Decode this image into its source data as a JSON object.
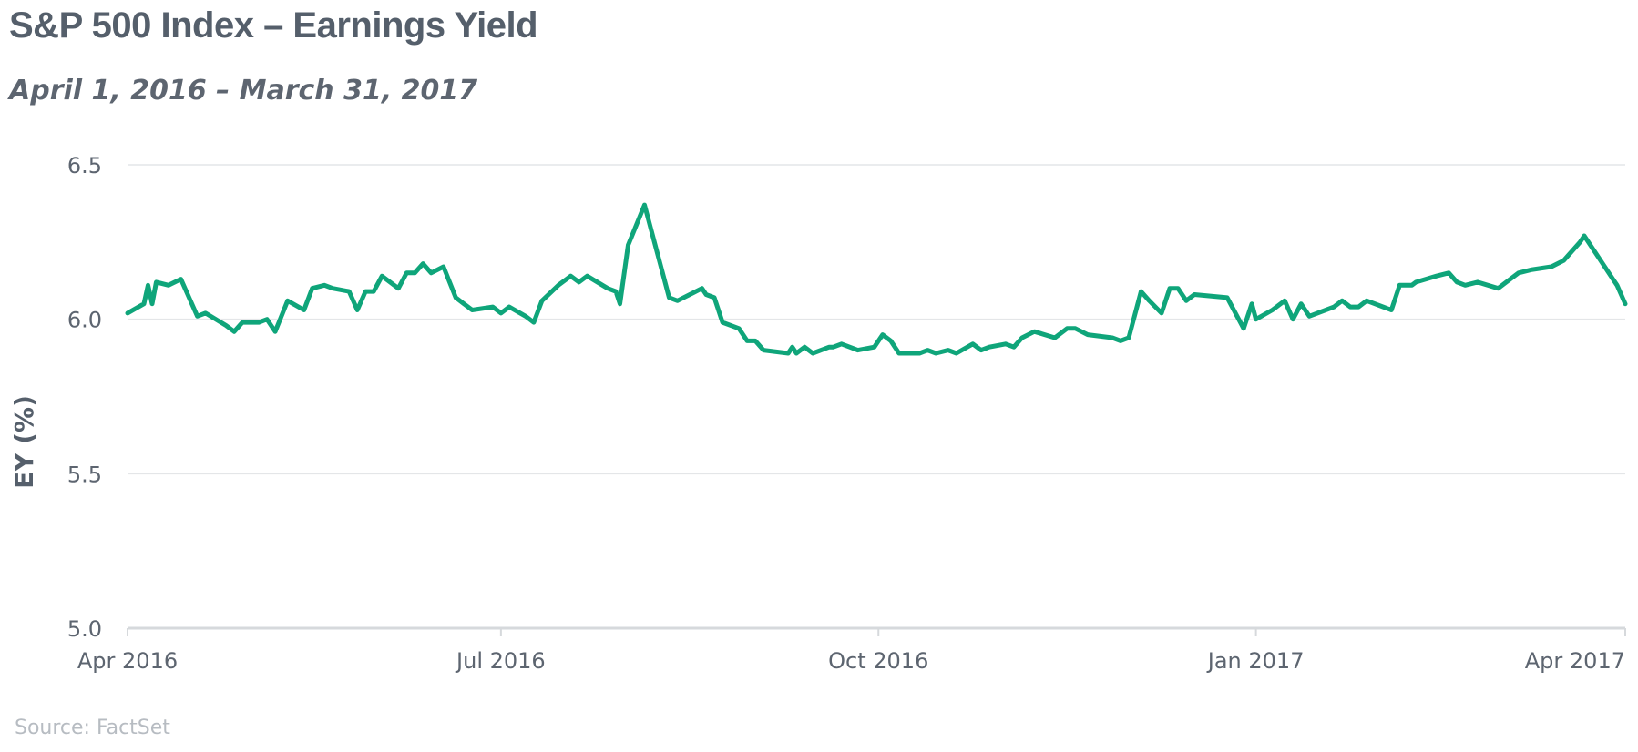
{
  "title": "S&P 500 Index – Earnings Yield",
  "subtitle": "April 1, 2016 – March 31, 2017",
  "source": "Source: FactSet",
  "chart_data": {
    "type": "line",
    "ylabel": "EY (%)",
    "xlabel": "",
    "ylim": [
      5.0,
      6.5
    ],
    "yticks": [
      5.0,
      5.5,
      6.0,
      6.5
    ],
    "xlim": [
      "2016-04-01",
      "2017-04-01"
    ],
    "xticks": [
      {
        "date": "2016-04-01",
        "label": "Apr 2016"
      },
      {
        "date": "2016-07-01",
        "label": "Jul 2016"
      },
      {
        "date": "2016-10-01",
        "label": "Oct 2016"
      },
      {
        "date": "2017-01-01",
        "label": "Jan 2017"
      },
      {
        "date": "2017-04-01",
        "label": "Apr 2017"
      }
    ],
    "grid": true,
    "color": "#0fa57a",
    "series": [
      {
        "points": [
          [
            "2016-04-01",
            6.02
          ],
          [
            "2016-04-05",
            6.05
          ],
          [
            "2016-04-06",
            6.11
          ],
          [
            "2016-04-07",
            6.05
          ],
          [
            "2016-04-08",
            6.12
          ],
          [
            "2016-04-11",
            6.11
          ],
          [
            "2016-04-14",
            6.13
          ],
          [
            "2016-04-18",
            6.01
          ],
          [
            "2016-04-20",
            6.02
          ],
          [
            "2016-04-25",
            5.98
          ],
          [
            "2016-04-27",
            5.96
          ],
          [
            "2016-04-29",
            5.99
          ],
          [
            "2016-05-03",
            5.99
          ],
          [
            "2016-05-05",
            6.0
          ],
          [
            "2016-05-07",
            5.96
          ],
          [
            "2016-05-10",
            6.06
          ],
          [
            "2016-05-14",
            6.03
          ],
          [
            "2016-05-16",
            6.1
          ],
          [
            "2016-05-19",
            6.11
          ],
          [
            "2016-05-21",
            6.1
          ],
          [
            "2016-05-25",
            6.09
          ],
          [
            "2016-05-27",
            6.03
          ],
          [
            "2016-05-29",
            6.09
          ],
          [
            "2016-05-31",
            6.09
          ],
          [
            "2016-06-02",
            6.14
          ],
          [
            "2016-06-06",
            6.1
          ],
          [
            "2016-06-08",
            6.15
          ],
          [
            "2016-06-10",
            6.15
          ],
          [
            "2016-06-12",
            6.18
          ],
          [
            "2016-06-14",
            6.15
          ],
          [
            "2016-06-17",
            6.17
          ],
          [
            "2016-06-20",
            6.07
          ],
          [
            "2016-06-22",
            6.05
          ],
          [
            "2016-06-24",
            6.03
          ],
          [
            "2016-06-29",
            6.04
          ],
          [
            "2016-07-01",
            6.02
          ],
          [
            "2016-07-03",
            6.04
          ],
          [
            "2016-07-07",
            6.01
          ],
          [
            "2016-07-09",
            5.99
          ],
          [
            "2016-07-11",
            6.06
          ],
          [
            "2016-07-15",
            6.11
          ],
          [
            "2016-07-18",
            6.14
          ],
          [
            "2016-07-20",
            6.12
          ],
          [
            "2016-07-22",
            6.14
          ],
          [
            "2016-07-27",
            6.1
          ],
          [
            "2016-07-29",
            6.09
          ],
          [
            "2016-07-30",
            6.05
          ],
          [
            "2016-08-01",
            6.24
          ],
          [
            "2016-08-05",
            6.37
          ],
          [
            "2016-08-08",
            6.22
          ],
          [
            "2016-08-11",
            6.07
          ],
          [
            "2016-08-13",
            6.06
          ],
          [
            "2016-08-19",
            6.1
          ],
          [
            "2016-08-20",
            6.08
          ],
          [
            "2016-08-22",
            6.07
          ],
          [
            "2016-08-24",
            5.99
          ],
          [
            "2016-08-28",
            5.97
          ],
          [
            "2016-08-30",
            5.93
          ],
          [
            "2016-09-01",
            5.93
          ],
          [
            "2016-09-03",
            5.9
          ],
          [
            "2016-09-09",
            5.89
          ],
          [
            "2016-09-10",
            5.91
          ],
          [
            "2016-09-11",
            5.89
          ],
          [
            "2016-09-13",
            5.91
          ],
          [
            "2016-09-15",
            5.89
          ],
          [
            "2016-09-19",
            5.91
          ],
          [
            "2016-09-20",
            5.91
          ],
          [
            "2016-09-22",
            5.92
          ],
          [
            "2016-09-24",
            5.91
          ],
          [
            "2016-09-26",
            5.9
          ],
          [
            "2016-09-30",
            5.91
          ],
          [
            "2016-10-02",
            5.95
          ],
          [
            "2016-10-04",
            5.93
          ],
          [
            "2016-10-06",
            5.89
          ],
          [
            "2016-10-11",
            5.89
          ],
          [
            "2016-10-13",
            5.9
          ],
          [
            "2016-10-15",
            5.89
          ],
          [
            "2016-10-18",
            5.9
          ],
          [
            "2016-10-20",
            5.89
          ],
          [
            "2016-10-24",
            5.92
          ],
          [
            "2016-10-26",
            5.9
          ],
          [
            "2016-10-28",
            5.91
          ],
          [
            "2016-11-01",
            5.92
          ],
          [
            "2016-11-03",
            5.91
          ],
          [
            "2016-11-05",
            5.94
          ],
          [
            "2016-11-08",
            5.96
          ],
          [
            "2016-11-13",
            5.94
          ],
          [
            "2016-11-16",
            5.97
          ],
          [
            "2016-11-18",
            5.97
          ],
          [
            "2016-11-21",
            5.95
          ],
          [
            "2016-11-27",
            5.94
          ],
          [
            "2016-11-29",
            5.93
          ],
          [
            "2016-12-01",
            5.94
          ],
          [
            "2016-12-04",
            6.09
          ],
          [
            "2016-12-06",
            6.06
          ],
          [
            "2016-12-09",
            6.02
          ],
          [
            "2016-12-11",
            6.1
          ],
          [
            "2016-12-13",
            6.1
          ],
          [
            "2016-12-15",
            6.06
          ],
          [
            "2016-12-17",
            6.08
          ],
          [
            "2016-12-25",
            6.07
          ],
          [
            "2016-12-29",
            5.97
          ],
          [
            "2017-01-01",
            6.0
          ],
          [
            "2017-01-05",
            6.03
          ],
          [
            "2017-01-08",
            6.06
          ],
          [
            "2017-01-10",
            6.0
          ],
          [
            "2017-01-12",
            6.05
          ],
          [
            "2017-01-14",
            6.01
          ],
          [
            "2017-01-18",
            6.03
          ],
          [
            "2017-01-20",
            6.04
          ],
          [
            "2017-01-22",
            6.06
          ],
          [
            "2017-01-24",
            6.04
          ],
          [
            "2017-01-26",
            6.04
          ],
          [
            "2017-01-28",
            6.06
          ],
          [
            "2017-02-01",
            6.04
          ],
          [
            "2017-02-03",
            6.03
          ],
          [
            "2017-02-05",
            6.11
          ],
          [
            "2017-02-08",
            6.11
          ],
          [
            "2017-02-09",
            6.12
          ],
          [
            "2017-02-14",
            6.14
          ],
          [
            "2017-02-17",
            6.15
          ],
          [
            "2017-02-19",
            6.12
          ],
          [
            "2017-02-21",
            6.11
          ],
          [
            "2017-02-24",
            6.12
          ],
          [
            "2017-03-01",
            6.1
          ],
          [
            "2017-03-06",
            6.15
          ],
          [
            "2017-03-09",
            6.16
          ],
          [
            "2017-03-14",
            6.17
          ],
          [
            "2017-03-17",
            6.19
          ],
          [
            "2017-03-21",
            6.25
          ],
          [
            "2017-03-22",
            6.27
          ],
          [
            "2017-03-29",
            6.13
          ],
          [
            "2017-03-30",
            6.11
          ],
          [
            "2017-04-01",
            6.05
          ],
          [
            "2016-12-31",
            6.05
          ]
        ]
      }
    ]
  }
}
